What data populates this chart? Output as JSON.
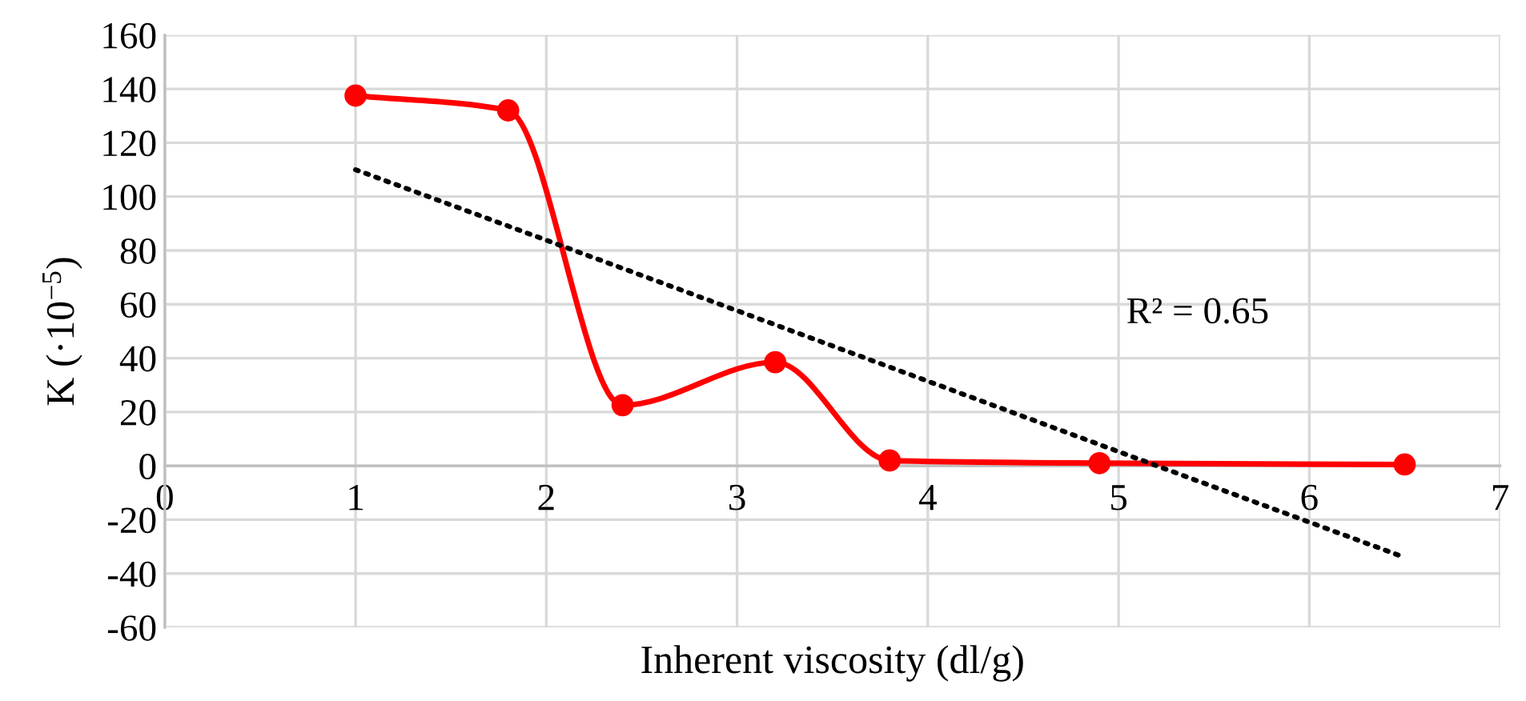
{
  "chart_data": {
    "type": "line",
    "xlabel": "Inherent viscosity (dl/g)",
    "ylabel": "K (·10$^{−5}$)",
    "x": [
      1,
      1.8,
      2.4,
      3.2,
      3.8,
      4.9,
      6.5
    ],
    "series": [
      {
        "color": "#ff0000",
        "values": [
          137.5,
          132,
          22.5,
          38.5,
          2,
          1,
          0.5
        ],
        "marker": "circle",
        "line_style": "solid"
      },
      {
        "type": "line",
        "x": [
          1,
          6.5
        ],
        "values": [
          110,
          -34
        ],
        "color": "#000000",
        "marker": "none",
        "line_style": "dotted"
      }
    ],
    "annotations": [
      "R² = 0.65"
    ],
    "xlim": [
      0,
      7
    ],
    "xticks": [
      0,
      1,
      2,
      3,
      4,
      5,
      6,
      7
    ],
    "ylim": [
      -60,
      160
    ],
    "yticks": [
      -60,
      -40,
      -20,
      0,
      20,
      40,
      60,
      80,
      100,
      120,
      140,
      160
    ],
    "grid": true
  }
}
